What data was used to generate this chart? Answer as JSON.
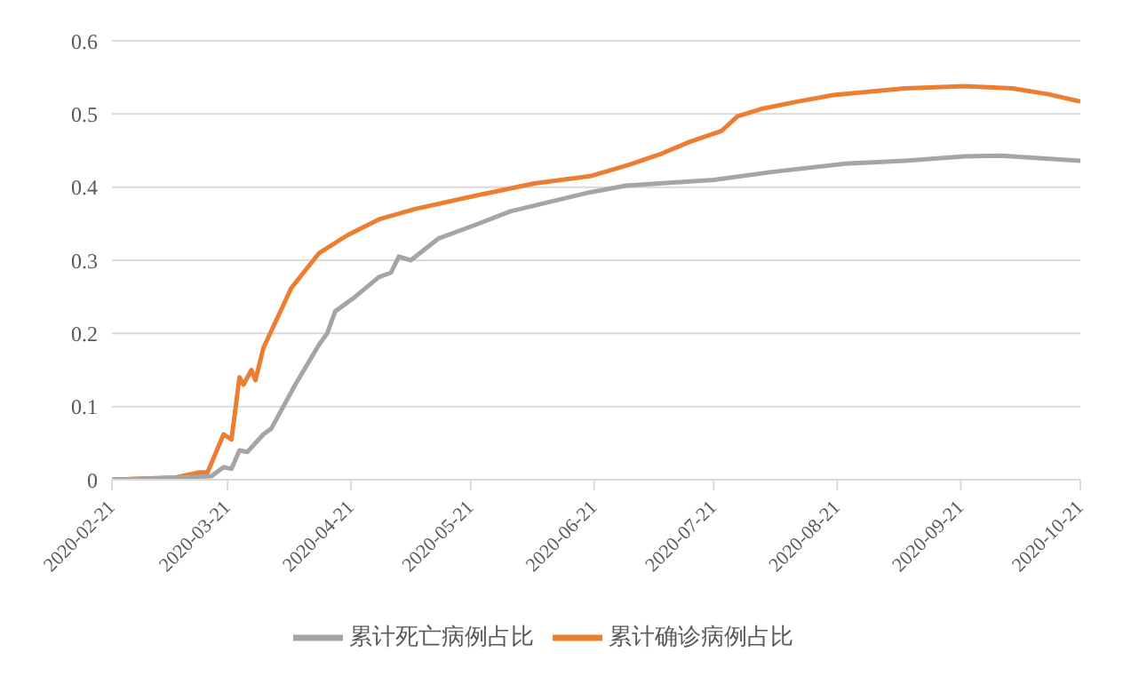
{
  "chart_data": {
    "type": "line",
    "x": [
      "2020-02-21",
      "2020-03-08",
      "2020-03-14",
      "2020-03-16",
      "2020-03-20",
      "2020-03-22",
      "2020-03-24",
      "2020-03-25",
      "2020-03-27",
      "2020-03-28",
      "2020-03-30",
      "2020-04-06",
      "2020-04-13",
      "2020-04-20",
      "2020-04-28",
      "2020-05-07",
      "2020-05-22",
      "2020-06-06",
      "2020-06-20",
      "2020-06-30",
      "2020-07-08",
      "2020-07-15",
      "2020-07-23",
      "2020-07-27",
      "2020-08-02",
      "2020-08-11",
      "2020-08-20",
      "2020-09-07",
      "2020-09-22",
      "2020-10-04",
      "2020-10-13",
      "2020-10-21"
    ],
    "series": [
      {
        "name": "累计确诊病例占比",
        "color": "#ed7d31",
        "values": [
          0,
          0.003,
          0.01,
          0.01,
          0.062,
          0.055,
          0.14,
          0.13,
          0.15,
          0.136,
          0.18,
          0.262,
          0.31,
          0.334,
          0.356,
          0.37,
          0.388,
          0.405,
          0.415,
          0.431,
          0.446,
          0.462,
          0.477,
          0.497,
          0.507,
          0.517,
          0.526,
          0.535,
          0.538,
          0.535,
          0.527,
          0.517
        ]
      },
      {
        "name": "累计死亡病例占比",
        "color": "#a5a5a5",
        "x": [
          "2020-02-21",
          "2020-03-10",
          "2020-03-17",
          "2020-03-20",
          "2020-03-22",
          "2020-03-24",
          "2020-03-26",
          "2020-03-30",
          "2020-04-01",
          "2020-04-07",
          "2020-04-13",
          "2020-04-15",
          "2020-04-17",
          "2020-04-22",
          "2020-04-28",
          "2020-05-01",
          "2020-05-03",
          "2020-05-06",
          "2020-05-13",
          "2020-05-22",
          "2020-05-31",
          "2020-06-20",
          "2020-06-29",
          "2020-07-21",
          "2020-08-05",
          "2020-08-23",
          "2020-09-07",
          "2020-09-22",
          "2020-10-01",
          "2020-10-21"
        ],
        "values": [
          0,
          0.003,
          0.005,
          0.017,
          0.015,
          0.04,
          0.038,
          0.062,
          0.07,
          0.13,
          0.185,
          0.2,
          0.23,
          0.25,
          0.277,
          0.283,
          0.305,
          0.3,
          0.33,
          0.348,
          0.367,
          0.393,
          0.402,
          0.41,
          0.421,
          0.432,
          0.436,
          0.442,
          0.443,
          0.436
        ]
      }
    ],
    "xlim": [
      "2020-02-21",
      "2020-10-21"
    ],
    "xticks": [
      "2020-02-21",
      "2020-03-21",
      "2020-04-21",
      "2020-05-21",
      "2020-06-21",
      "2020-07-21",
      "2020-08-21",
      "2020-09-21",
      "2020-10-21"
    ],
    "ylim": [
      0,
      0.6
    ],
    "yticks": [
      0,
      0.1,
      0.2,
      0.3,
      0.4,
      0.5,
      0.6
    ],
    "grid": "y",
    "legend": "bottom",
    "marker": "none",
    "line_style": "solid"
  }
}
